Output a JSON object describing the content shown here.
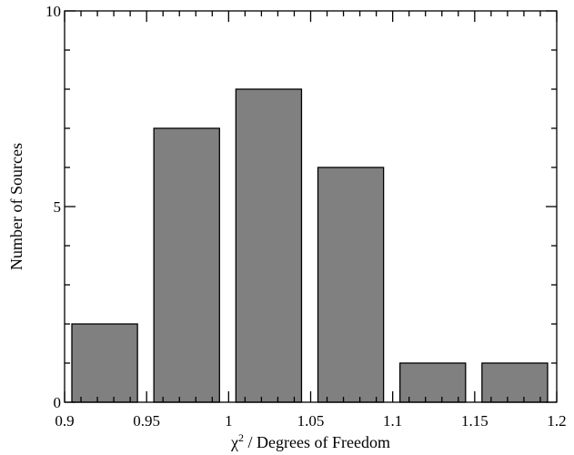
{
  "chart_data": {
    "type": "bar",
    "title": "",
    "xlabel_prefix": "χ",
    "xlabel_sup": "2",
    "xlabel_suffix": " / Degrees of Freedom",
    "ylabel": "Number of Sources",
    "xlim": [
      0.9,
      1.2
    ],
    "ylim": [
      0,
      10
    ],
    "x_ticks": [
      0.9,
      0.95,
      1,
      1.05,
      1.1,
      1.15,
      1.2
    ],
    "x_tick_labels": [
      "0.9",
      "0.95",
      "1",
      "1.05",
      "1.1",
      "1.15",
      "1.2"
    ],
    "y_ticks": [
      0,
      5,
      10
    ],
    "y_tick_labels": [
      "0",
      "5",
      "10"
    ],
    "bins": [
      {
        "x0": 0.9,
        "x1": 0.94,
        "value": 2
      },
      {
        "x0": 0.95,
        "x1": 0.99,
        "value": 7
      },
      {
        "x0": 1.0,
        "x1": 1.04,
        "value": 8
      },
      {
        "x0": 1.05,
        "x1": 1.09,
        "value": 6
      },
      {
        "x0": 1.1,
        "x1": 1.14,
        "value": 1
      },
      {
        "x0": 1.15,
        "x1": 1.19,
        "value": 1
      }
    ],
    "bar_color": "#808080",
    "grid": false,
    "legend": "none"
  }
}
